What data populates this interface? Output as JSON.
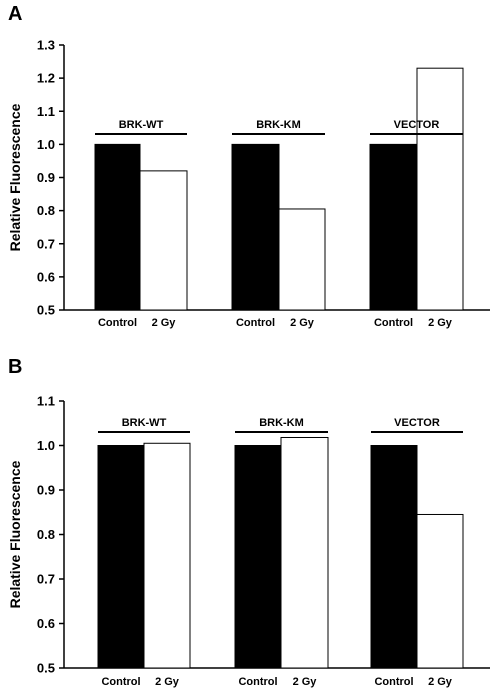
{
  "chart_data": [
    {
      "panel": "A",
      "type": "bar",
      "ylabel": "Relative Fluorescence",
      "ylim": [
        0.5,
        1.3
      ],
      "yticks": [
        "0.5",
        "0.6",
        "0.7",
        "0.8",
        "0.9",
        "1.0",
        "1.1",
        "1.2",
        "1.3"
      ],
      "groups": [
        {
          "label": "BRK-WT",
          "categories": [
            "Control",
            "2 Gy"
          ],
          "values": [
            1.0,
            0.92
          ]
        },
        {
          "label": "BRK-KM",
          "categories": [
            "Control",
            "2 Gy"
          ],
          "values": [
            1.0,
            0.805
          ]
        },
        {
          "label": "VECTOR",
          "categories": [
            "Control",
            "2 Gy"
          ],
          "values": [
            1.0,
            1.23
          ]
        }
      ],
      "colors": {
        "Control": "#000000",
        "2 Gy": "#ffffff"
      }
    },
    {
      "panel": "B",
      "type": "bar",
      "ylabel": "Relative Fluorescence",
      "ylim": [
        0.5,
        1.1
      ],
      "yticks": [
        "0.5",
        "0.6",
        "0.7",
        "0.8",
        "0.9",
        "1.0",
        "1.1"
      ],
      "groups": [
        {
          "label": "BRK-WT",
          "categories": [
            "Control",
            "2 Gy"
          ],
          "values": [
            1.0,
            1.005
          ]
        },
        {
          "label": "BRK-KM",
          "categories": [
            "Control",
            "2 Gy"
          ],
          "values": [
            1.0,
            1.018
          ]
        },
        {
          "label": "VECTOR",
          "categories": [
            "Control",
            "2 Gy"
          ],
          "values": [
            1.0,
            0.845
          ]
        }
      ],
      "colors": {
        "Control": "#000000",
        "2 Gy": "#ffffff"
      }
    }
  ]
}
